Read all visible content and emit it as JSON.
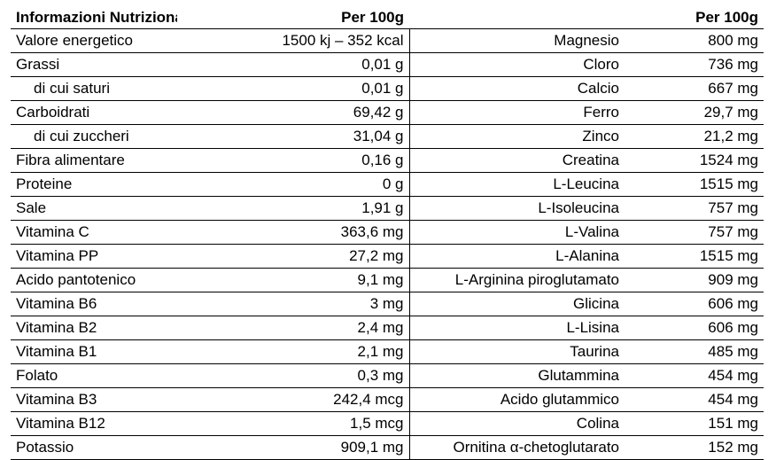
{
  "header": {
    "col1": "Informazioni Nutrizionali",
    "col2": "Per 100g",
    "col3": "",
    "col4": "Per 100g"
  },
  "rows": [
    {
      "left_label": "Valore energetico",
      "left_value": "1500 kj – 352 kcal",
      "right_label": "Magnesio",
      "right_value": "800 mg"
    },
    {
      "left_label": "Grassi",
      "left_value": "0,01 g",
      "right_label": "Cloro",
      "right_value": "736 mg"
    },
    {
      "left_label": "di cui saturi",
      "left_value": "0,01 g",
      "right_label": "Calcio",
      "right_value": "667 mg"
    },
    {
      "left_label": "Carboidrati",
      "left_value": "69,42 g",
      "right_label": "Ferro",
      "right_value": "29,7 mg"
    },
    {
      "left_label": "di cui zuccheri",
      "left_value": "31,04 g",
      "right_label": "Zinco",
      "right_value": "21,2 mg"
    },
    {
      "left_label": "Fibra alimentare",
      "left_value": "0,16 g",
      "right_label": "Creatina",
      "right_value": "1524 mg"
    },
    {
      "left_label": "Proteine",
      "left_value": "0 g",
      "right_label": "L-Leucina",
      "right_value": "1515 mg"
    },
    {
      "left_label": "Sale",
      "left_value": "1,91 g",
      "right_label": "L-Isoleucina",
      "right_value": "757 mg"
    },
    {
      "left_label": "Vitamina C",
      "left_value": "363,6 mg",
      "right_label": "L-Valina",
      "right_value": "757 mg"
    },
    {
      "left_label": "Vitamina PP",
      "left_value": "27,2 mg",
      "right_label": "L-Alanina",
      "right_value": "1515 mg"
    },
    {
      "left_label": "Acido pantotenico",
      "left_value": "9,1 mg",
      "right_label": "L-Arginina piroglutamato",
      "right_value": "909 mg"
    },
    {
      "left_label": "Vitamina B6",
      "left_value": "3 mg",
      "right_label": "Glicina",
      "right_value": "606 mg"
    },
    {
      "left_label": "Vitamina B2",
      "left_value": "2,4 mg",
      "right_label": "L-Lisina",
      "right_value": "606 mg"
    },
    {
      "left_label": "Vitamina B1",
      "left_value": "2,1 mg",
      "right_label": "Taurina",
      "right_value": "485 mg"
    },
    {
      "left_label": "Folato",
      "left_value": "0,3 mg",
      "right_label": "Glutammina",
      "right_value": "454 mg"
    },
    {
      "left_label": "Vitamina B3",
      "left_value": "242,4 mcg",
      "right_label": "Acido glutammico",
      "right_value": "454 mg"
    },
    {
      "left_label": "Vitamina B12",
      "left_value": "1,5 mcg",
      "right_label": "Colina",
      "right_value": "151 mg"
    },
    {
      "left_label": "Potassio",
      "left_value": "909,1 mg",
      "right_label": "Ornitina α-chetoglutarato",
      "right_value": "152 mg"
    }
  ]
}
